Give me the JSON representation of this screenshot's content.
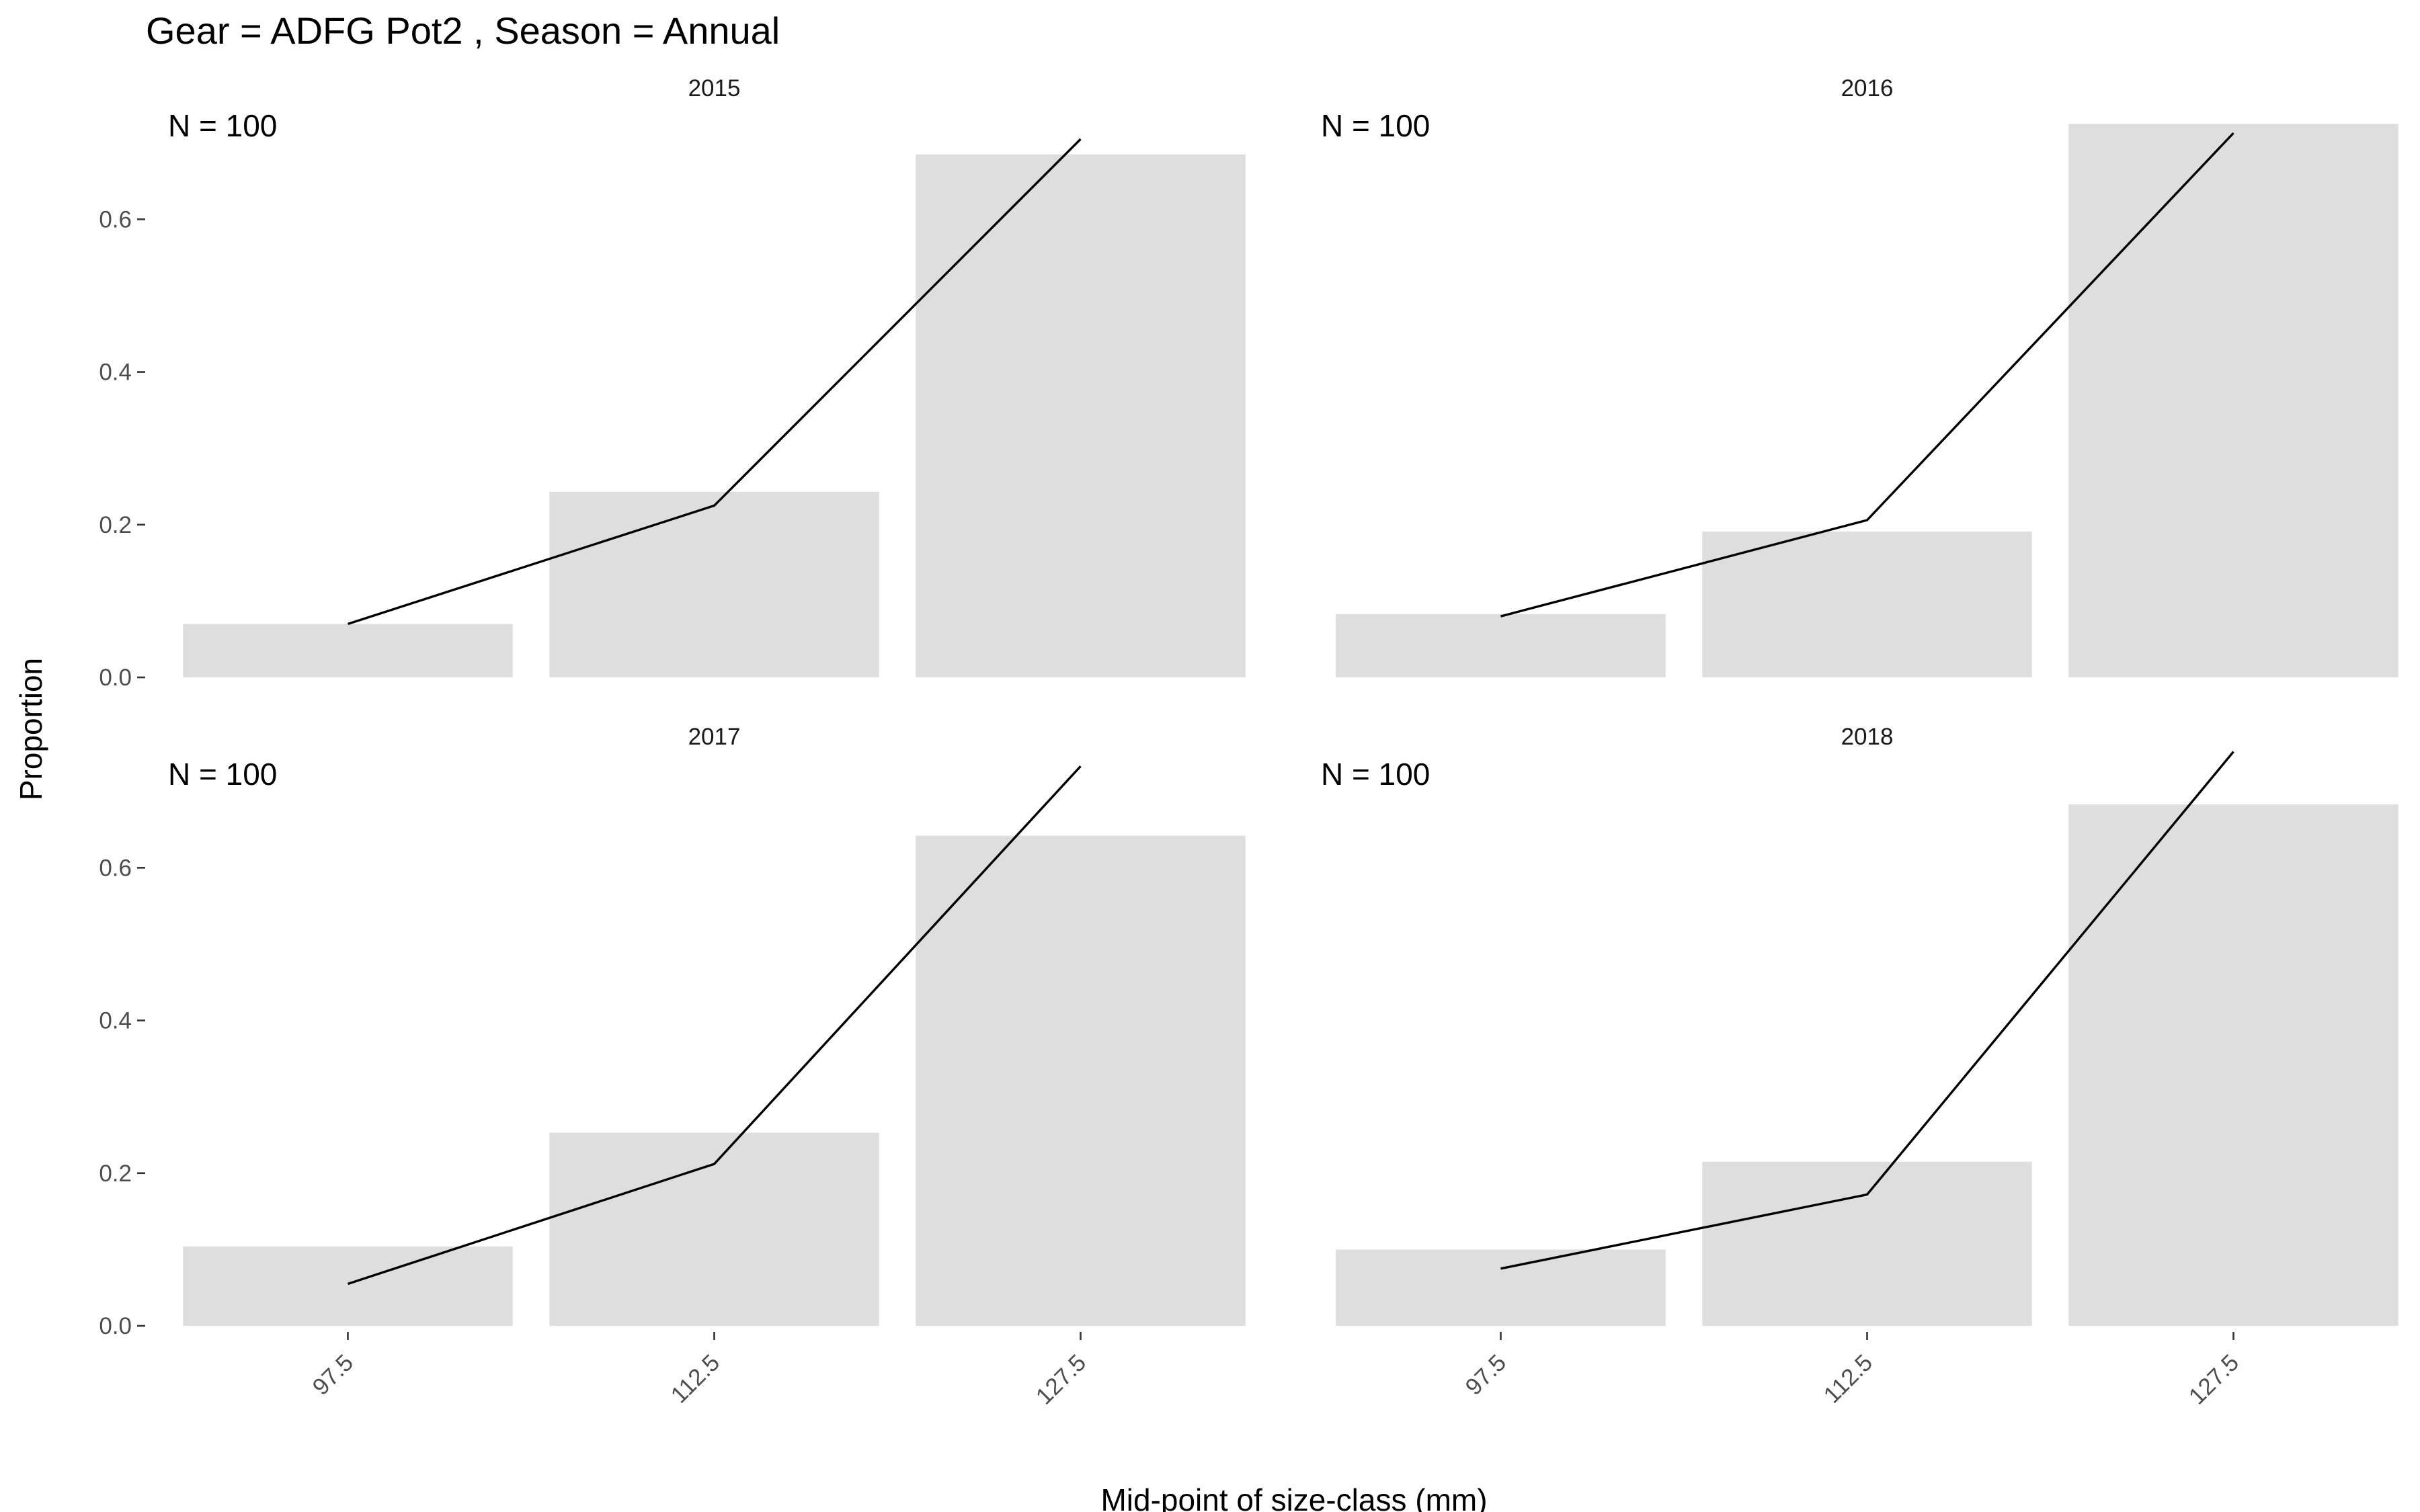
{
  "chart_data": {
    "type": "bar",
    "title": "Gear = ADFG Pot2 , Season = Annual",
    "xlabel": "Mid-point of size-class (mm)",
    "ylabel": "Proportion",
    "categories": [
      "97.5",
      "112.5",
      "127.5"
    ],
    "yticks": [
      "0.0",
      "0.2",
      "0.4",
      "0.6"
    ],
    "ylim": [
      0,
      0.72
    ],
    "grid": false,
    "panels": [
      {
        "strip": "2015",
        "n_label": "N = 100",
        "observed": [
          0.07,
          0.243,
          0.685
        ],
        "predicted": [
          0.07,
          0.225,
          0.705
        ]
      },
      {
        "strip": "2016",
        "n_label": "N = 100",
        "observed": [
          0.083,
          0.191,
          0.725
        ],
        "predicted": [
          0.08,
          0.206,
          0.713
        ]
      },
      {
        "strip": "2017",
        "n_label": "N = 100",
        "observed": [
          0.104,
          0.253,
          0.642
        ],
        "predicted": [
          0.055,
          0.212,
          0.733
        ]
      },
      {
        "strip": "2018",
        "n_label": "N = 100",
        "observed": [
          0.1,
          0.215,
          0.683
        ],
        "predicted": [
          0.075,
          0.172,
          0.752
        ]
      }
    ]
  }
}
